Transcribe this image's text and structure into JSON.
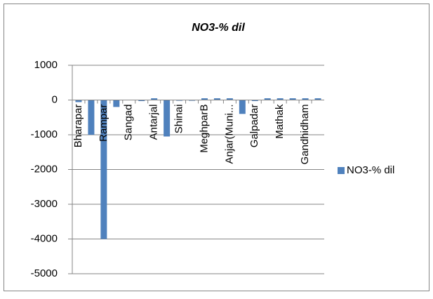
{
  "chart_data": {
    "type": "bar",
    "title": "NO3-% dil",
    "categories": [
      "Bharapar",
      null,
      "Rampar",
      null,
      "Sangad",
      null,
      "Antarjal",
      null,
      "Shinai",
      null,
      "MeghparB",
      null,
      "Anjar(Muni...",
      null,
      "Galpadar",
      null,
      "Mathak",
      null,
      "Gandhidham",
      null
    ],
    "series": [
      {
        "name": "NO3-% dil",
        "color": "#4f81bd",
        "values": [
          -60,
          -1000,
          -4000,
          -200,
          -10,
          -30,
          50,
          -1050,
          -20,
          -20,
          50,
          50,
          50,
          -400,
          -30,
          50,
          50,
          50,
          50,
          50
        ]
      }
    ],
    "ylim": [
      -5000,
      1000
    ],
    "yticks": [
      -5000,
      -4000,
      -3000,
      -2000,
      -1000,
      0,
      1000
    ],
    "grid": true,
    "legend": "right"
  }
}
